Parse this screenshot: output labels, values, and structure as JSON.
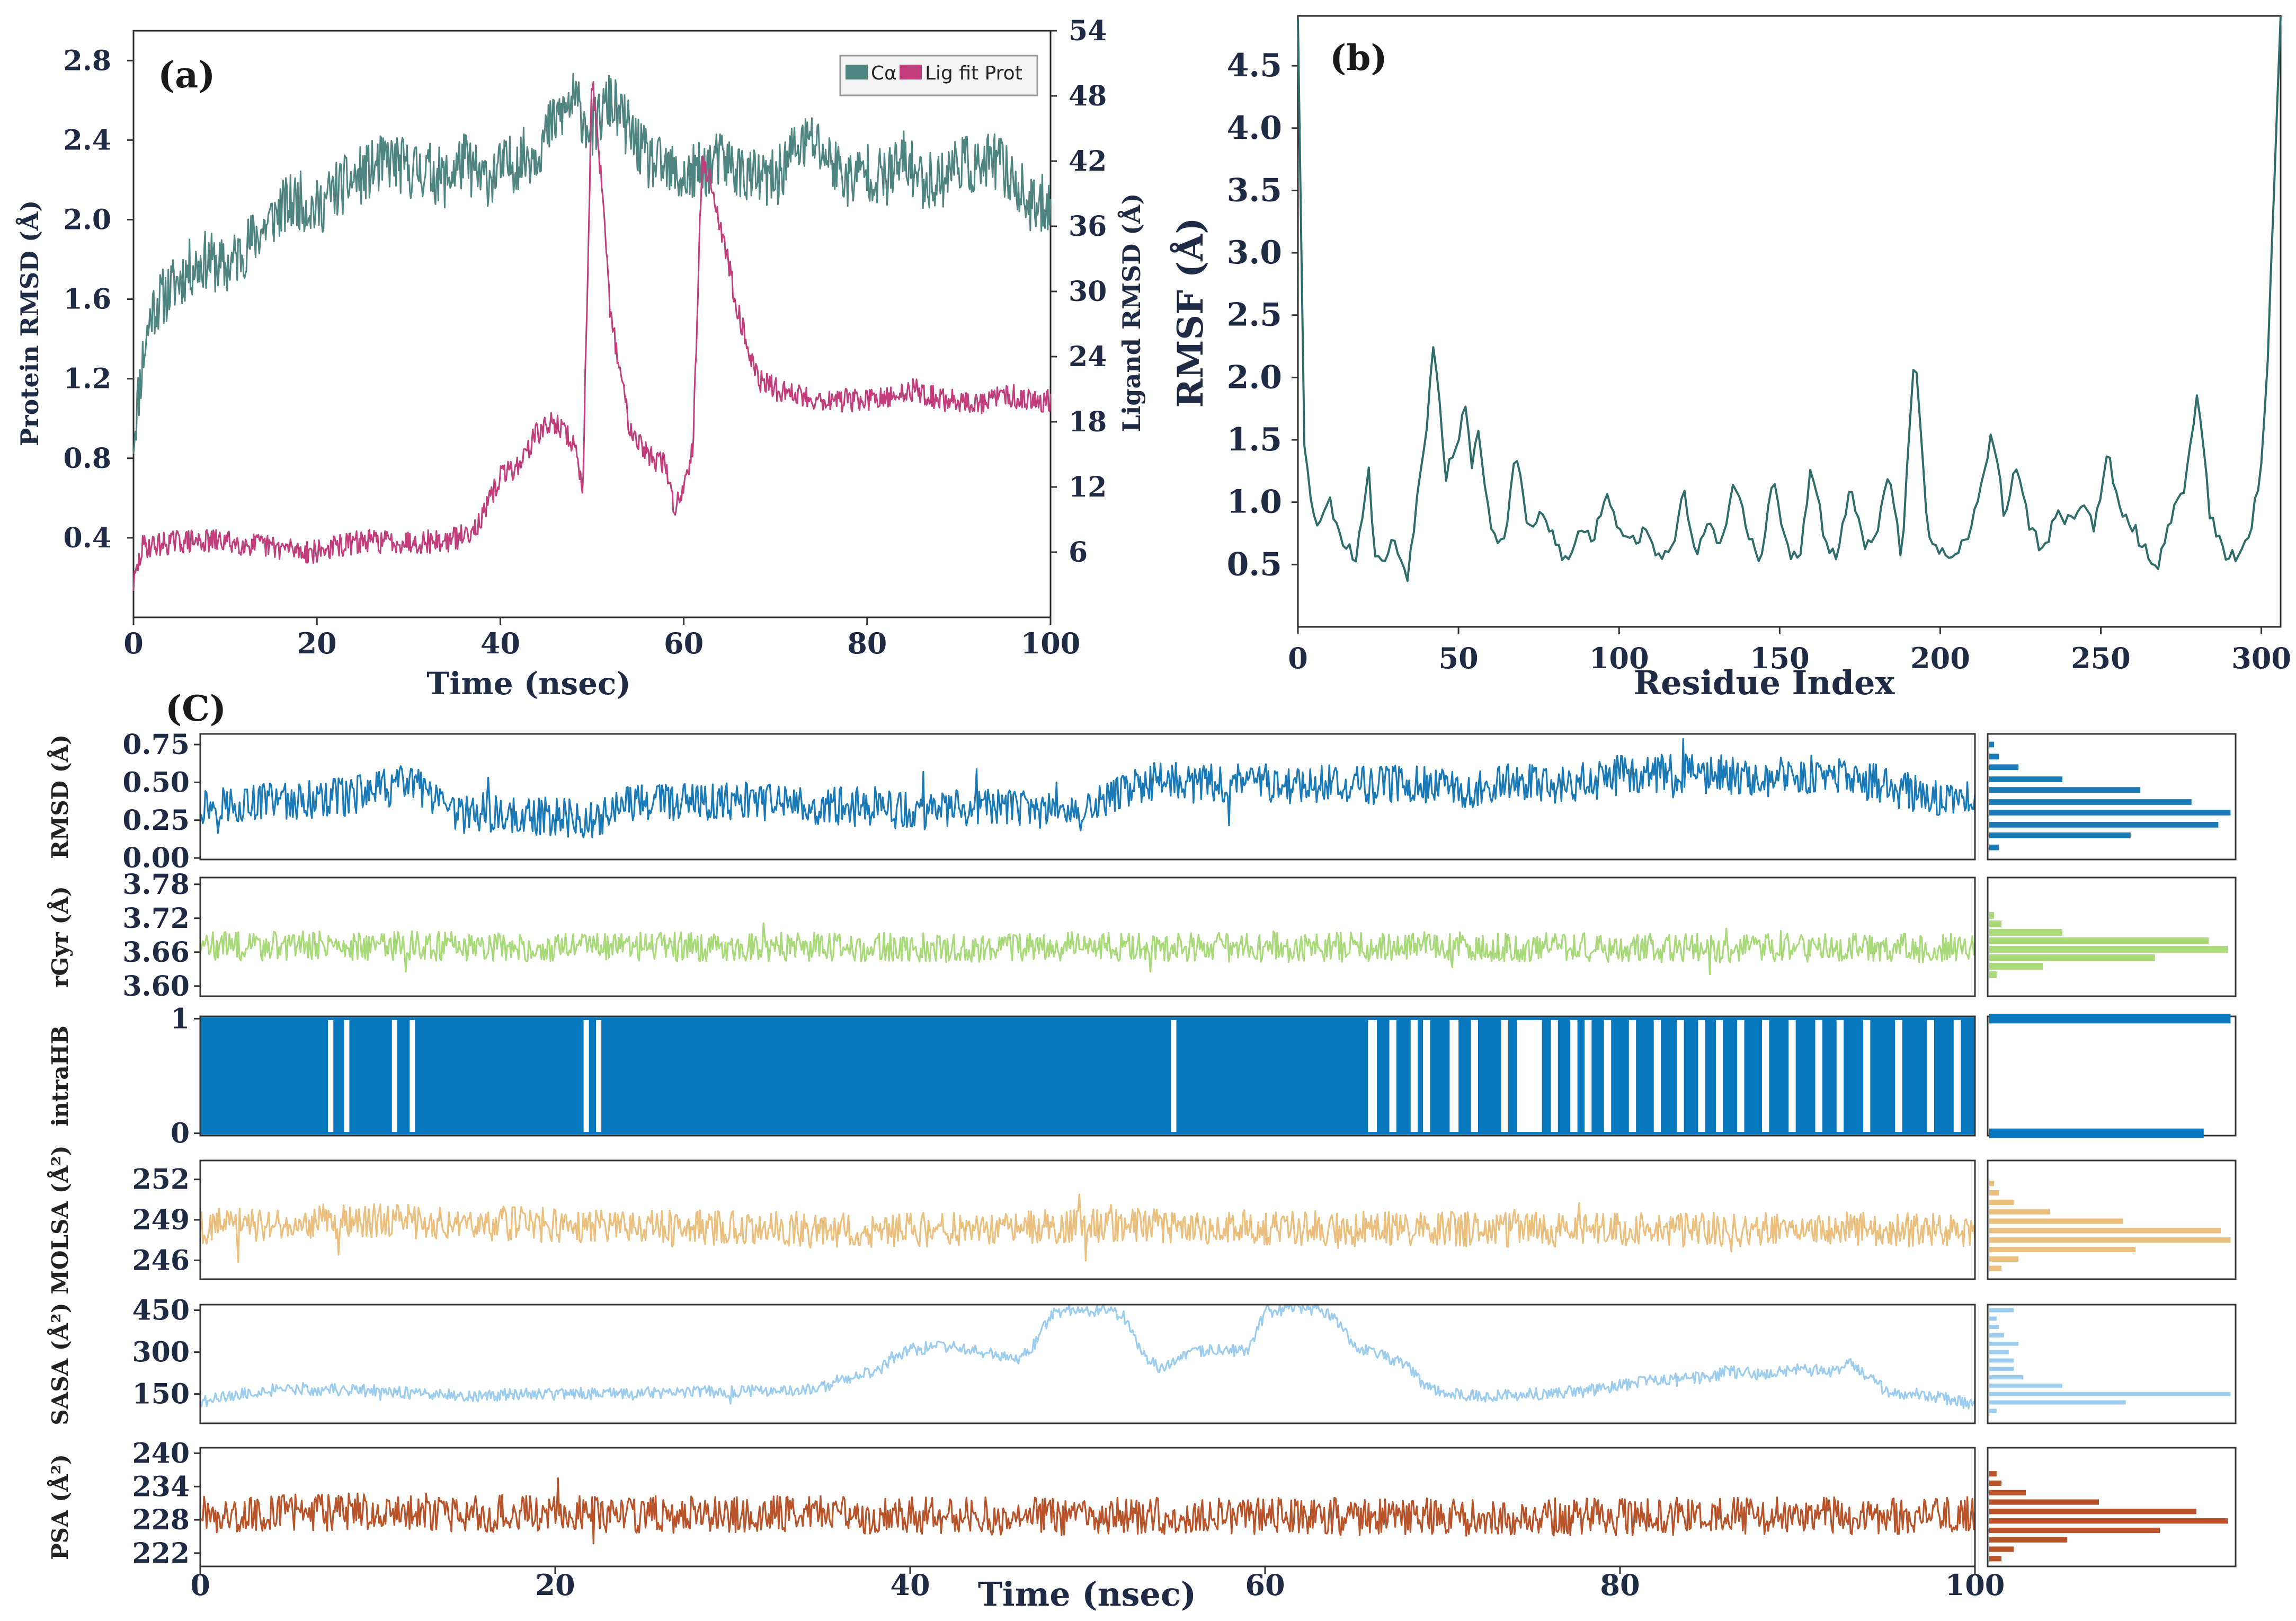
{
  "figure": {
    "panel_a_label": "(a)",
    "panel_b_label": "(b)",
    "panel_c_label": "(C)"
  },
  "colors": {
    "ca": "#4F8580",
    "lig": "#C13D7C",
    "rmsf": "#2F6C6C",
    "rmsd_c": "#1A7AB8",
    "rgyr": "#A8DA7A",
    "intrahb": "#0778BE",
    "molsa": "#EBC07E",
    "sasa": "#9CCDEE",
    "psa": "#B9542A",
    "axis": "#1f2a44"
  },
  "chart_data": [
    {
      "id": "a",
      "type": "line",
      "title": "(a)",
      "xlabel": "Time (nsec)",
      "ylabel": "Protein RMSD (Å)",
      "y2label": "Ligand RMSD (Å)",
      "xlim": [
        0,
        100
      ],
      "xticks": [
        0,
        20,
        40,
        60,
        80,
        100
      ],
      "ylim": [
        0.0,
        2.95
      ],
      "yticks": [
        "0.4",
        "0.8",
        "1.2",
        "1.6",
        "2.0",
        "2.4",
        "2.8"
      ],
      "y2lim": [
        0,
        54
      ],
      "y2ticks": [
        "6",
        "12",
        "18",
        "24",
        "30",
        "36",
        "42",
        "48",
        "54"
      ],
      "legend": {
        "placement": "top-right",
        "entries": [
          "Cα",
          "Lig fit Prot"
        ]
      },
      "series": [
        {
          "name": "Cα",
          "axis": "left",
          "x": [
            0,
            1,
            2,
            4,
            6,
            8,
            10,
            12,
            14,
            16,
            18,
            20,
            22,
            24,
            26,
            28,
            30,
            32,
            34,
            36,
            38,
            40,
            42,
            44,
            46,
            48,
            50,
            52,
            54,
            56,
            58,
            60,
            62,
            64,
            66,
            68,
            70,
            72,
            74,
            76,
            78,
            80,
            82,
            84,
            86,
            88,
            90,
            92,
            94,
            96,
            98,
            100
          ],
          "values": [
            0.9,
            1.3,
            1.55,
            1.65,
            1.75,
            1.8,
            1.75,
            1.85,
            1.95,
            2.05,
            2.1,
            2.05,
            2.15,
            2.2,
            2.25,
            2.3,
            2.25,
            2.25,
            2.2,
            2.3,
            2.2,
            2.25,
            2.3,
            2.35,
            2.5,
            2.6,
            2.45,
            2.6,
            2.45,
            2.3,
            2.25,
            2.2,
            2.25,
            2.3,
            2.25,
            2.2,
            2.2,
            2.35,
            2.4,
            2.3,
            2.2,
            2.25,
            2.2,
            2.3,
            2.2,
            2.2,
            2.3,
            2.25,
            2.3,
            2.2,
            2.05,
            2.1
          ]
        },
        {
          "name": "Lig fit Prot",
          "axis": "right",
          "x": [
            0,
            1,
            5,
            10,
            15,
            20,
            22,
            25,
            30,
            34,
            36,
            38,
            40,
            42,
            44,
            46,
            48,
            49,
            50,
            51,
            52,
            54,
            56,
            58,
            59,
            60,
            61,
            62,
            63,
            64,
            65,
            66,
            68,
            70,
            75,
            80,
            82,
            85,
            88,
            90,
            92,
            95,
            98,
            100
          ],
          "values": [
            3,
            6.5,
            7,
            7,
            6.5,
            6,
            6.5,
            7,
            7,
            7,
            7.5,
            9,
            13,
            14,
            17,
            18,
            16,
            12,
            50,
            40,
            28,
            18,
            15,
            14,
            10,
            12,
            16,
            42,
            40,
            36,
            32,
            28,
            22,
            21,
            20,
            20,
            20,
            21,
            20,
            20,
            19.5,
            20.5,
            20,
            20
          ]
        }
      ]
    },
    {
      "id": "b",
      "type": "line",
      "title": "(b)",
      "xlabel": "Residue Index",
      "ylabel": "RMSF (Å)",
      "xlim": [
        0,
        306
      ],
      "xticks": [
        0,
        50,
        100,
        150,
        200,
        250,
        300
      ],
      "ylim": [
        0.0,
        4.9
      ],
      "yticks": [
        "0.5",
        "1.0",
        "1.5",
        "2.0",
        "2.5",
        "3.0",
        "3.5",
        "4.0",
        "4.5"
      ],
      "series": [
        {
          "name": "RMSF",
          "x": [
            0,
            2,
            4,
            6,
            10,
            14,
            18,
            22,
            24,
            26,
            30,
            34,
            38,
            40,
            42,
            44,
            46,
            48,
            50,
            52,
            54,
            56,
            60,
            64,
            68,
            72,
            76,
            80,
            84,
            88,
            92,
            96,
            100,
            104,
            108,
            112,
            116,
            120,
            124,
            128,
            132,
            136,
            140,
            144,
            148,
            152,
            156,
            160,
            164,
            168,
            172,
            176,
            180,
            184,
            188,
            192,
            196,
            200,
            204,
            208,
            212,
            216,
            220,
            224,
            228,
            232,
            236,
            240,
            244,
            248,
            252,
            256,
            260,
            264,
            268,
            272,
            276,
            280,
            284,
            288,
            292,
            296,
            300,
            302,
            304,
            306
          ],
          "values": [
            4.9,
            1.5,
            1.0,
            0.85,
            1.0,
            0.7,
            0.55,
            1.25,
            0.6,
            0.5,
            0.7,
            0.4,
            1.2,
            1.6,
            2.3,
            1.9,
            1.2,
            1.4,
            1.5,
            1.8,
            1.3,
            1.6,
            0.8,
            0.65,
            1.4,
            0.75,
            0.9,
            0.7,
            0.5,
            0.8,
            0.7,
            1.1,
            0.8,
            0.7,
            0.75,
            0.6,
            0.55,
            1.1,
            0.6,
            0.8,
            0.65,
            1.2,
            0.75,
            0.5,
            1.2,
            0.65,
            0.5,
            1.3,
            0.7,
            0.5,
            1.2,
            0.65,
            0.7,
            1.3,
            0.55,
            2.2,
            0.8,
            0.6,
            0.5,
            0.7,
            1.0,
            1.6,
            0.9,
            1.3,
            0.8,
            0.6,
            0.9,
            0.85,
            1.0,
            0.8,
            1.4,
            0.9,
            0.8,
            0.6,
            0.5,
            0.9,
            1.1,
            1.9,
            0.9,
            0.6,
            0.55,
            0.7,
            1.3,
            2.2,
            3.5,
            4.9
          ]
        }
      ]
    },
    {
      "id": "c-rmsd",
      "type": "line",
      "ylabel": "RMSD (Å)",
      "xlim": [
        0,
        100
      ],
      "ylim": [
        -0.01,
        0.82
      ],
      "yticks": [
        0.0,
        0.25,
        0.5,
        0.75
      ],
      "ytick_labels": [
        "0.00",
        "0.25",
        "0.50",
        "0.75"
      ],
      "x": [
        0,
        2,
        4,
        6,
        8,
        10,
        12,
        14,
        16,
        18,
        20,
        22,
        24,
        26,
        28,
        30,
        32,
        34,
        36,
        38,
        40,
        42,
        44,
        46,
        48,
        50,
        52,
        54,
        56,
        58,
        60,
        62,
        64,
        66,
        68,
        70,
        72,
        74,
        76,
        78,
        80,
        82,
        84,
        86,
        88,
        90,
        92,
        94,
        96,
        98,
        100
      ],
      "values": [
        0.35,
        0.36,
        0.38,
        0.38,
        0.4,
        0.45,
        0.5,
        0.28,
        0.3,
        0.27,
        0.28,
        0.25,
        0.36,
        0.38,
        0.35,
        0.38,
        0.36,
        0.35,
        0.34,
        0.34,
        0.3,
        0.32,
        0.33,
        0.32,
        0.31,
        0.3,
        0.45,
        0.52,
        0.48,
        0.5,
        0.5,
        0.48,
        0.5,
        0.48,
        0.5,
        0.47,
        0.45,
        0.5,
        0.48,
        0.5,
        0.55,
        0.56,
        0.56,
        0.55,
        0.52,
        0.55,
        0.55,
        0.5,
        0.45,
        0.4,
        0.38
      ],
      "amplitude": 0.13,
      "histogram": {
        "bins": [
          0.07,
          0.15,
          0.22,
          0.3,
          0.37,
          0.45,
          0.52,
          0.6,
          0.67,
          0.75
        ],
        "counts": [
          0.04,
          0.58,
          0.94,
          0.99,
          0.83,
          0.62,
          0.3,
          0.12,
          0.04,
          0.02
        ]
      }
    },
    {
      "id": "c-rgyr",
      "type": "line",
      "ylabel": "rGyr (Å)",
      "xlim": [
        0,
        100
      ],
      "ylim": [
        3.582,
        3.792
      ],
      "yticks": [
        3.6,
        3.66,
        3.72,
        3.78
      ],
      "ytick_labels": [
        "3.60",
        "3.66",
        "3.72",
        "3.78"
      ],
      "x": [
        0,
        10,
        20,
        30,
        40,
        50,
        60,
        70,
        80,
        90,
        100
      ],
      "values": [
        3.67,
        3.672,
        3.668,
        3.67,
        3.668,
        3.67,
        3.668,
        3.67,
        3.668,
        3.667,
        3.668
      ],
      "amplitude": 0.026,
      "histogram": {
        "bins": [
          3.62,
          3.635,
          3.65,
          3.665,
          3.68,
          3.695,
          3.71,
          3.725
        ],
        "counts": [
          0.03,
          0.22,
          0.68,
          0.98,
          0.9,
          0.3,
          0.05,
          0.02
        ]
      }
    },
    {
      "id": "c-intrahb",
      "type": "bar",
      "ylabel": "intraHB",
      "xlim": [
        0,
        100
      ],
      "ylim": [
        -0.02,
        1.02
      ],
      "yticks": [
        0,
        1
      ],
      "ytick_labels": [
        "0",
        "1"
      ],
      "gaps": [
        [
          7.2,
          7.5
        ],
        [
          8.1,
          8.4
        ],
        [
          10.8,
          11.1
        ],
        [
          11.8,
          12.1
        ],
        [
          21.6,
          21.9
        ],
        [
          22.3,
          22.6
        ],
        [
          54.7,
          55.0
        ],
        [
          65.8,
          66.3
        ],
        [
          67.0,
          67.4
        ],
        [
          68.2,
          68.6
        ],
        [
          68.9,
          69.3
        ],
        [
          70.4,
          70.9
        ],
        [
          71.6,
          72.0
        ],
        [
          73.3,
          73.7
        ],
        [
          74.2,
          75.6
        ],
        [
          76.1,
          76.5
        ],
        [
          77.2,
          77.6
        ],
        [
          78.0,
          78.4
        ],
        [
          79.1,
          79.5
        ],
        [
          80.5,
          80.9
        ],
        [
          81.9,
          82.3
        ],
        [
          83.2,
          83.6
        ],
        [
          84.4,
          84.8
        ],
        [
          85.4,
          85.8
        ],
        [
          86.6,
          87.0
        ],
        [
          88.0,
          88.4
        ],
        [
          89.5,
          89.9
        ],
        [
          91.0,
          91.4
        ],
        [
          92.2,
          92.6
        ],
        [
          93.7,
          94.1
        ],
        [
          95.5,
          95.9
        ],
        [
          97.3,
          97.7
        ],
        [
          98.8,
          99.2
        ]
      ],
      "histogram": {
        "bins": [
          0,
          1
        ],
        "counts": [
          0.88,
          0.99
        ]
      }
    },
    {
      "id": "c-molsa",
      "type": "line",
      "ylabel": "MOLSA (Å²)",
      "xlim": [
        0,
        100
      ],
      "ylim": [
        244.6,
        253.4
      ],
      "yticks": [
        246,
        249,
        252
      ],
      "ytick_labels": [
        "246",
        "249",
        "252"
      ],
      "x": [
        0,
        10,
        20,
        30,
        40,
        50,
        60,
        70,
        80,
        90,
        100
      ],
      "values": [
        248.5,
        249.0,
        248.6,
        248.4,
        248.2,
        248.6,
        248.4,
        248.3,
        248.2,
        248.3,
        248.2
      ],
      "amplitude": 1.3,
      "histogram": {
        "bins": [
          245.4,
          246.1,
          246.8,
          247.5,
          248.2,
          248.9,
          249.6,
          250.3,
          251.0,
          251.7
        ],
        "counts": [
          0.05,
          0.12,
          0.6,
          0.99,
          0.95,
          0.55,
          0.25,
          0.1,
          0.04,
          0.02
        ]
      }
    },
    {
      "id": "c-sasa",
      "type": "line",
      "ylabel": "SASA (Å²)",
      "xlim": [
        0,
        100
      ],
      "ylim": [
        45,
        470
      ],
      "yticks": [
        150,
        300,
        450
      ],
      "ytick_labels": [
        "150",
        "300",
        "450"
      ],
      "x": [
        0,
        2,
        5,
        10,
        15,
        20,
        25,
        30,
        33,
        35,
        36,
        38,
        40,
        42,
        44,
        46,
        47,
        48,
        49,
        50,
        51,
        52,
        53,
        54,
        56,
        58,
        59,
        60,
        61,
        62,
        63,
        64,
        65,
        66,
        67,
        68,
        69,
        70,
        72,
        75,
        78,
        80,
        82,
        85,
        86,
        88,
        90,
        92,
        93,
        95,
        98,
        100
      ],
      "values": [
        120,
        150,
        170,
        160,
        145,
        150,
        155,
        160,
        165,
        170,
        200,
        230,
        310,
        320,
        300,
        270,
        330,
        440,
        450,
        450,
        445,
        430,
        300,
        240,
        300,
        310,
        300,
        440,
        450,
        455,
        450,
        420,
        320,
        300,
        280,
        250,
        180,
        160,
        140,
        150,
        160,
        180,
        200,
        210,
        230,
        220,
        240,
        230,
        260,
        160,
        140,
        110
      ],
      "amplitude": 22,
      "histogram": {
        "bins": [
          90,
          120,
          150,
          180,
          210,
          240,
          270,
          300,
          330,
          360,
          390,
          420,
          450
        ],
        "counts": [
          0.03,
          0.56,
          0.99,
          0.3,
          0.14,
          0.1,
          0.1,
          0.08,
          0.12,
          0.06,
          0.04,
          0.03,
          0.1
        ]
      }
    },
    {
      "id": "c-psa",
      "type": "line",
      "ylabel": "PSA (Å²)",
      "xlim": [
        0,
        100
      ],
      "ylim": [
        219.6,
        241.0
      ],
      "yticks": [
        222,
        228,
        234,
        240
      ],
      "ytick_labels": [
        "222",
        "228",
        "234",
        "240"
      ],
      "x": [
        0,
        10,
        20,
        30,
        40,
        50,
        60,
        70,
        80,
        90,
        100
      ],
      "values": [
        229,
        229.5,
        229,
        229,
        228.8,
        228.6,
        228.7,
        228.5,
        228.6,
        228.7,
        228.8
      ],
      "amplitude": 3.4,
      "histogram": {
        "bins": [
          221,
          222.7,
          224.4,
          226.1,
          227.8,
          229.5,
          231.2,
          232.9,
          234.6,
          236.3
        ],
        "counts": [
          0.05,
          0.1,
          0.32,
          0.7,
          0.98,
          0.85,
          0.45,
          0.15,
          0.05,
          0.03
        ]
      }
    }
  ],
  "panel_c": {
    "xlabel": "Time (nsec)",
    "xticks": [
      "0",
      "20",
      "40",
      "60",
      "80",
      "100"
    ]
  }
}
